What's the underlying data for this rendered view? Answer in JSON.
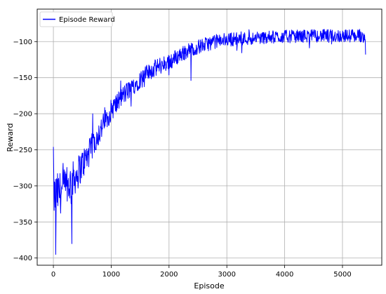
{
  "chart_data": {
    "type": "line",
    "title": "",
    "xlabel": "Episode",
    "ylabel": "Reward",
    "xlim": [
      -280,
      5680
    ],
    "ylim": [
      -410,
      -55
    ],
    "grid": true,
    "legend_position": "top-left",
    "x_ticks": [
      0,
      1000,
      2000,
      3000,
      4000,
      5000
    ],
    "y_ticks": [
      -100,
      -150,
      -200,
      -250,
      -300,
      -350,
      -400
    ],
    "x_tick_labels": [
      "0",
      "1000",
      "2000",
      "3000",
      "4000",
      "5000"
    ],
    "y_tick_labels": [
      "−100",
      "−150",
      "−200",
      "−250",
      "−300",
      "−350",
      "−400"
    ],
    "series": [
      {
        "name": "Episode Reward",
        "color": "#0000ff",
        "x_range": [
          0,
          5400
        ],
        "trend_x": [
          0,
          100,
          200,
          300,
          400,
          500,
          600,
          700,
          800,
          900,
          1000,
          1200,
          1400,
          1600,
          1800,
          2000,
          2200,
          2400,
          2600,
          2800,
          3000,
          3500,
          4000,
          4500,
          5000,
          5400
        ],
        "trend_y": [
          -315,
          -310,
          -305,
          -295,
          -285,
          -270,
          -258,
          -240,
          -225,
          -210,
          -195,
          -175,
          -160,
          -145,
          -135,
          -128,
          -118,
          -110,
          -105,
          -100,
          -97,
          -95,
          -93,
          -92,
          -92,
          -92
        ],
        "noise": [
          30,
          30,
          28,
          26,
          24,
          22,
          20,
          18,
          17,
          16,
          15,
          14,
          13,
          12,
          12,
          12,
          11,
          10,
          10,
          10,
          10,
          9,
          9,
          9,
          9,
          9
        ],
        "notable_points": [
          {
            "x": 0,
            "y": -246
          },
          {
            "x": 40,
            "y": -395
          },
          {
            "x": 320,
            "y": -380
          },
          {
            "x": 680,
            "y": -200
          },
          {
            "x": 2380,
            "y": -154
          },
          {
            "x": 5400,
            "y": -118
          }
        ]
      }
    ]
  }
}
